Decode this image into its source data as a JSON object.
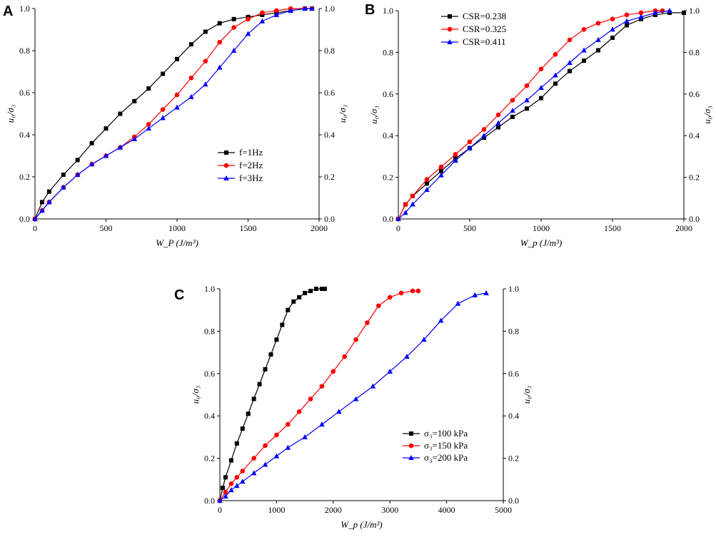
{
  "chart_data": [
    {
      "panel": "A",
      "type": "line",
      "xlabel": "W_P (J/m³)",
      "ylabel": "u₀/σ₃",
      "xlim": [
        0,
        2000
      ],
      "ylim": [
        0,
        1.0
      ],
      "xticks": [
        "0",
        "500",
        "1000",
        "1500",
        "2000"
      ],
      "yticks": [
        "0.0",
        "0.2",
        "0.4",
        "0.6",
        "0.8",
        "1.0"
      ],
      "legend_position": "center-right",
      "series": [
        {
          "name": "f=1Hz",
          "marker": "square",
          "color": "#000000",
          "x": [
            0,
            50,
            100,
            200,
            300,
            400,
            500,
            600,
            700,
            800,
            900,
            1000,
            1100,
            1200,
            1300,
            1400,
            1500,
            1600,
            1700,
            1800,
            1900,
            1950
          ],
          "y": [
            0,
            0.08,
            0.13,
            0.21,
            0.28,
            0.36,
            0.43,
            0.5,
            0.56,
            0.62,
            0.69,
            0.76,
            0.83,
            0.89,
            0.93,
            0.95,
            0.96,
            0.97,
            0.98,
            0.99,
            1.0,
            1.0
          ]
        },
        {
          "name": "f=2Hz",
          "marker": "circle",
          "color": "#ff0000",
          "x": [
            0,
            50,
            100,
            200,
            300,
            400,
            500,
            600,
            700,
            800,
            900,
            1000,
            1100,
            1200,
            1300,
            1400,
            1500,
            1600,
            1700,
            1800,
            1900,
            1950
          ],
          "y": [
            0,
            0.04,
            0.08,
            0.15,
            0.21,
            0.26,
            0.3,
            0.34,
            0.39,
            0.45,
            0.52,
            0.59,
            0.67,
            0.75,
            0.84,
            0.91,
            0.95,
            0.98,
            0.99,
            1.0,
            1.0,
            1.0
          ]
        },
        {
          "name": "f=3Hz",
          "marker": "triangle",
          "color": "#0000ff",
          "x": [
            0,
            50,
            100,
            200,
            300,
            400,
            500,
            600,
            700,
            800,
            900,
            1000,
            1100,
            1200,
            1300,
            1400,
            1500,
            1600,
            1700,
            1800,
            1900,
            1950
          ],
          "y": [
            0,
            0.04,
            0.08,
            0.15,
            0.21,
            0.26,
            0.3,
            0.34,
            0.38,
            0.43,
            0.48,
            0.53,
            0.58,
            0.64,
            0.72,
            0.8,
            0.88,
            0.94,
            0.97,
            0.99,
            1.0,
            1.0
          ]
        }
      ]
    },
    {
      "panel": "B",
      "type": "line",
      "xlabel": "W_p (J/m³)",
      "ylabel": "u₀/σ₃",
      "xlim": [
        0,
        2000
      ],
      "ylim": [
        0,
        1.0
      ],
      "xticks": [
        "0",
        "500",
        "1000",
        "1500",
        "2000"
      ],
      "yticks": [
        "0.0",
        "0.2",
        "0.4",
        "0.6",
        "0.8",
        "1.0"
      ],
      "legend_position": "top-left",
      "series": [
        {
          "name": "CSR=0.238",
          "marker": "square",
          "color": "#000000",
          "x": [
            0,
            50,
            100,
            200,
            300,
            400,
            500,
            600,
            700,
            800,
            900,
            1000,
            1100,
            1200,
            1300,
            1400,
            1500,
            1600,
            1700,
            1800,
            1900,
            2000
          ],
          "y": [
            0,
            0.07,
            0.11,
            0.17,
            0.23,
            0.29,
            0.34,
            0.39,
            0.44,
            0.49,
            0.53,
            0.58,
            0.65,
            0.71,
            0.76,
            0.81,
            0.87,
            0.93,
            0.96,
            0.98,
            0.99,
            0.99
          ]
        },
        {
          "name": "CSR=0.325",
          "marker": "circle",
          "color": "#ff0000",
          "x": [
            0,
            50,
            100,
            200,
            300,
            400,
            500,
            600,
            700,
            800,
            900,
            1000,
            1100,
            1200,
            1300,
            1400,
            1500,
            1600,
            1700,
            1800,
            1850
          ],
          "y": [
            0,
            0.07,
            0.11,
            0.19,
            0.25,
            0.31,
            0.37,
            0.43,
            0.5,
            0.57,
            0.64,
            0.72,
            0.79,
            0.86,
            0.91,
            0.94,
            0.96,
            0.98,
            0.99,
            1.0,
            1.0
          ]
        },
        {
          "name": "CSR=0.411",
          "marker": "triangle",
          "color": "#0000ff",
          "x": [
            0,
            50,
            100,
            200,
            300,
            400,
            500,
            600,
            700,
            800,
            900,
            1000,
            1100,
            1200,
            1300,
            1400,
            1500,
            1600,
            1700,
            1800,
            1900
          ],
          "y": [
            0,
            0.03,
            0.07,
            0.14,
            0.21,
            0.28,
            0.34,
            0.4,
            0.46,
            0.52,
            0.57,
            0.63,
            0.69,
            0.75,
            0.81,
            0.86,
            0.91,
            0.95,
            0.97,
            0.99,
            1.0
          ]
        }
      ]
    },
    {
      "panel": "C",
      "type": "line",
      "xlabel": "W_p (J/m³)",
      "ylabel": "u₀/σ₃",
      "xlim": [
        0,
        5000
      ],
      "ylim": [
        0,
        1.0
      ],
      "xticks": [
        "0",
        "1000",
        "2000",
        "3000",
        "4000",
        "5000"
      ],
      "yticks": [
        "0.0",
        "0.2",
        "0.4",
        "0.6",
        "0.8",
        "1.0"
      ],
      "legend_position": "bottom-right",
      "series": [
        {
          "name": "σ₃=100 kPa",
          "marker": "square",
          "color": "#000000",
          "x": [
            0,
            50,
            100,
            200,
            300,
            400,
            500,
            600,
            700,
            800,
            900,
            1000,
            1100,
            1200,
            1300,
            1400,
            1500,
            1600,
            1700,
            1800,
            1850
          ],
          "y": [
            0,
            0.06,
            0.11,
            0.19,
            0.27,
            0.34,
            0.41,
            0.48,
            0.55,
            0.62,
            0.69,
            0.76,
            0.83,
            0.9,
            0.94,
            0.96,
            0.98,
            0.99,
            1.0,
            1.0,
            1.0
          ]
        },
        {
          "name": "σ₃=150 kPa",
          "marker": "circle",
          "color": "#ff0000",
          "x": [
            0,
            100,
            200,
            300,
            400,
            600,
            800,
            1000,
            1200,
            1400,
            1600,
            1800,
            2000,
            2200,
            2400,
            2600,
            2800,
            3000,
            3200,
            3400,
            3500
          ],
          "y": [
            0,
            0.04,
            0.08,
            0.11,
            0.14,
            0.2,
            0.26,
            0.31,
            0.36,
            0.42,
            0.48,
            0.54,
            0.61,
            0.68,
            0.76,
            0.84,
            0.92,
            0.96,
            0.98,
            0.99,
            0.99
          ]
        },
        {
          "name": "σ₃=200 kPa",
          "marker": "triangle",
          "color": "#0000ff",
          "x": [
            0,
            100,
            200,
            300,
            400,
            600,
            800,
            1000,
            1200,
            1500,
            1800,
            2100,
            2400,
            2700,
            3000,
            3300,
            3600,
            3900,
            4200,
            4500,
            4700
          ],
          "y": [
            0,
            0.02,
            0.05,
            0.07,
            0.09,
            0.13,
            0.17,
            0.21,
            0.25,
            0.3,
            0.36,
            0.42,
            0.48,
            0.54,
            0.61,
            0.68,
            0.76,
            0.85,
            0.93,
            0.97,
            0.98
          ]
        }
      ]
    }
  ]
}
